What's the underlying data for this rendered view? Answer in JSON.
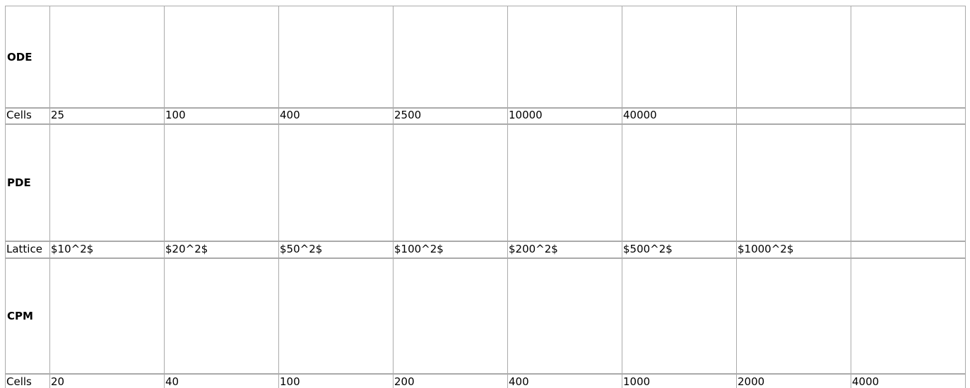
{
  "table": {
    "rows": [
      {
        "label": "ODE"
      },
      {
        "label": "Cells",
        "cells": [
          "25",
          "100",
          "400",
          "2500",
          "10000",
          "40000"
        ]
      },
      {
        "label": "PDE"
      },
      {
        "label": "Lattice",
        "cells": [
          "$10^2$",
          "$20^2$",
          "$50^2$",
          "$100^2$",
          "$200^2$",
          "$500^2$",
          "$1000^2$"
        ]
      },
      {
        "label": "CPM"
      },
      {
        "label": "Cells",
        "cells": [
          "20",
          "40",
          "100",
          "200",
          "400",
          "1000",
          "2000",
          "4000"
        ]
      }
    ]
  }
}
